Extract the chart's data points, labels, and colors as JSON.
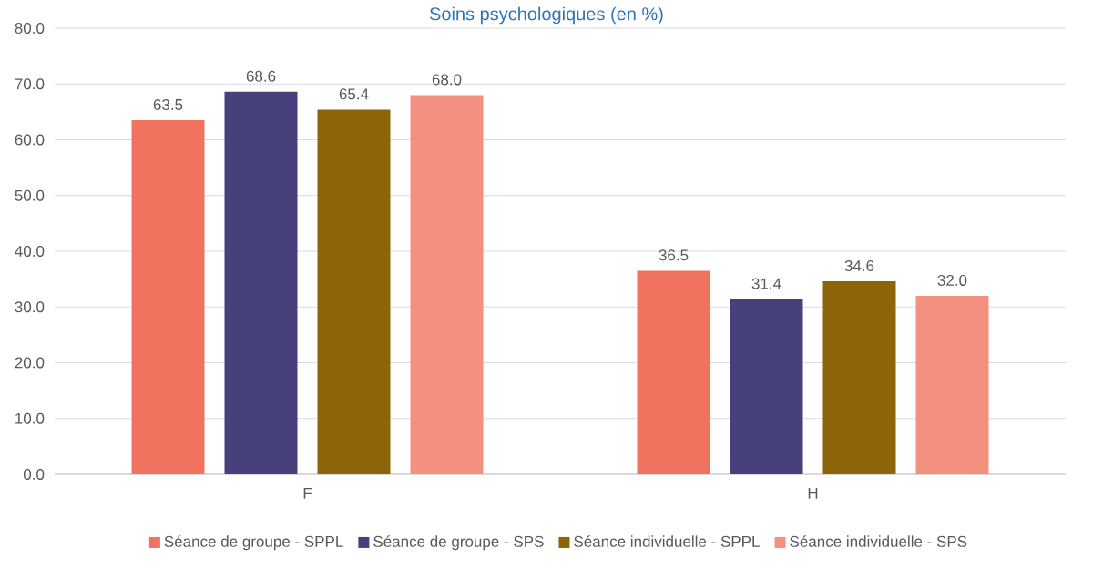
{
  "chart_data": {
    "type": "bar",
    "title": "Soins psychologiques (en %)",
    "categories": [
      "F",
      "H"
    ],
    "series": [
      {
        "name": "Séance de groupe - SPPL",
        "color": "#f07360",
        "values": [
          63.5,
          36.5
        ],
        "value_labels": [
          "63.5",
          "36.5"
        ]
      },
      {
        "name": "Séance de groupe - SPS",
        "color": "#46417a",
        "values": [
          68.6,
          31.4
        ],
        "value_labels": [
          "68.6",
          "31.4"
        ]
      },
      {
        "name": "Séance individuelle - SPPL",
        "color": "#8c6508",
        "values": [
          65.4,
          34.6
        ],
        "value_labels": [
          "65.4",
          "34.6"
        ]
      },
      {
        "name": "Séance individuelle - SPS",
        "color": "#f4907f",
        "values": [
          68.0,
          32.0
        ],
        "value_labels": [
          "68.0",
          "32.0"
        ]
      }
    ],
    "ylim": [
      0,
      80
    ],
    "yticks": [
      {
        "value": 0,
        "label": "0.0"
      },
      {
        "value": 10,
        "label": "10.0"
      },
      {
        "value": 20,
        "label": "20.0"
      },
      {
        "value": 30,
        "label": "30.0"
      },
      {
        "value": 40,
        "label": "40.0"
      },
      {
        "value": 50,
        "label": "50.0"
      },
      {
        "value": 60,
        "label": "60.0"
      },
      {
        "value": 70,
        "label": "70.0"
      },
      {
        "value": 80,
        "label": "80.0"
      }
    ],
    "grid": "y",
    "legend": "bottom"
  }
}
